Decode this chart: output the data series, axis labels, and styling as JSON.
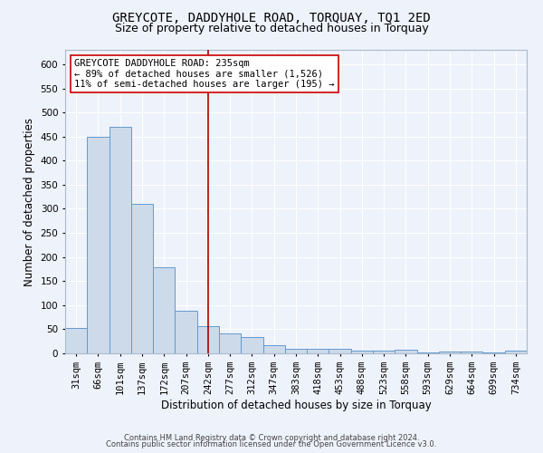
{
  "title": "GREYCOTE, DADDYHOLE ROAD, TORQUAY, TQ1 2ED",
  "subtitle": "Size of property relative to detached houses in Torquay",
  "xlabel": "Distribution of detached houses by size in Torquay",
  "ylabel": "Number of detached properties",
  "footnote1": "Contains HM Land Registry data © Crown copyright and database right 2024.",
  "footnote2": "Contains public sector information licensed under the Open Government Licence v3.0.",
  "categories": [
    "31sqm",
    "66sqm",
    "101sqm",
    "137sqm",
    "172sqm",
    "207sqm",
    "242sqm",
    "277sqm",
    "312sqm",
    "347sqm",
    "383sqm",
    "418sqm",
    "453sqm",
    "488sqm",
    "523sqm",
    "558sqm",
    "593sqm",
    "629sqm",
    "664sqm",
    "699sqm",
    "734sqm"
  ],
  "values": [
    52,
    450,
    470,
    310,
    178,
    88,
    57,
    42,
    33,
    16,
    10,
    10,
    9,
    6,
    6,
    8,
    1,
    4,
    4,
    1,
    5
  ],
  "bar_color": "#ccdaea",
  "bar_edge_color": "#6699cc",
  "vline_x": 6,
  "vline_color": "#aa0000",
  "annotation_lines": [
    "GREYCOTE DADDYHOLE ROAD: 235sqm",
    "← 89% of detached houses are smaller (1,526)",
    "11% of semi-detached houses are larger (195) →"
  ],
  "annotation_box_facecolor": "#ffffff",
  "annotation_box_edgecolor": "#cc0000",
  "ylim": [
    0,
    630
  ],
  "yticks": [
    0,
    50,
    100,
    150,
    200,
    250,
    300,
    350,
    400,
    450,
    500,
    550,
    600
  ],
  "background_color": "#eef2fb",
  "grid_color": "#ffffff",
  "title_fontsize": 10,
  "subtitle_fontsize": 9,
  "axis_label_fontsize": 8.5,
  "tick_fontsize": 7.5,
  "annotation_fontsize": 7.5,
  "footnote_fontsize": 6
}
